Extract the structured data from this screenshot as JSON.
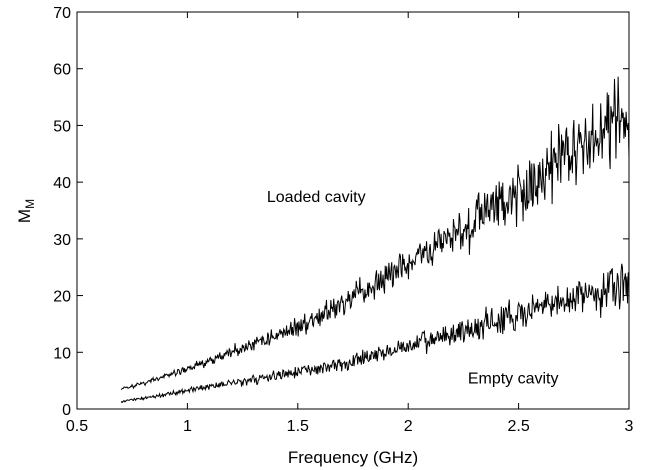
{
  "chart_data": {
    "type": "line",
    "title": "",
    "xlabel": "Frequency (GHz)",
    "ylabel_main": "M",
    "ylabel_sub": "M",
    "xlim": [
      0.5,
      3
    ],
    "ylim": [
      0,
      70
    ],
    "x_ticks": [
      0.5,
      1,
      1.5,
      2,
      2.5,
      3
    ],
    "x_tick_labels": [
      "0.5",
      "1",
      "1.5",
      "2",
      "2.5",
      "3"
    ],
    "y_ticks": [
      0,
      10,
      20,
      30,
      40,
      50,
      60,
      70
    ],
    "y_tick_labels": [
      "0",
      "10",
      "20",
      "30",
      "40",
      "50",
      "60",
      "70"
    ],
    "grid": false,
    "legend": "none",
    "line_color": "#000000",
    "annotations": [
      {
        "text": "Loaded cavity",
        "x": 1.36,
        "y": 36.5
      },
      {
        "text": "Empty cavity",
        "x": 2.27,
        "y": 4.5
      }
    ],
    "series": [
      {
        "x": [
          0.7,
          0.8,
          0.9,
          1.0,
          1.1,
          1.2,
          1.3,
          1.4,
          1.5,
          1.6,
          1.7,
          1.8,
          1.9,
          2.0,
          2.1,
          2.2,
          2.3,
          2.4,
          2.5,
          2.6,
          2.7,
          2.8,
          2.9,
          2.95,
          3.0
        ],
        "values": [
          3.5,
          4.5,
          5.8,
          7.0,
          8.5,
          10.0,
          11.5,
          13.0,
          14.5,
          16.5,
          18.5,
          20.5,
          23.0,
          25.5,
          28.0,
          30.5,
          33.5,
          36.0,
          38.5,
          41.0,
          43.5,
          46.5,
          49.0,
          51.0,
          52.0
        ],
        "noise_amplitude": [
          0.3,
          0.4,
          0.5,
          0.7,
          0.8,
          1.0,
          1.2,
          1.4,
          1.6,
          1.8,
          2.0,
          2.3,
          2.6,
          3.0,
          3.3,
          3.6,
          4.0,
          4.4,
          4.8,
          5.2,
          5.6,
          6.0,
          6.5,
          6.8,
          7.0
        ]
      },
      {
        "x": [
          0.7,
          0.8,
          0.9,
          1.0,
          1.1,
          1.2,
          1.3,
          1.4,
          1.5,
          1.6,
          1.7,
          1.8,
          1.9,
          2.0,
          2.1,
          2.2,
          2.3,
          2.4,
          2.5,
          2.6,
          2.7,
          2.8,
          2.9,
          2.95,
          3.0
        ],
        "values": [
          1.3,
          1.9,
          2.6,
          3.3,
          4.0,
          4.6,
          5.2,
          5.8,
          6.5,
          7.2,
          8.0,
          9.0,
          10.0,
          11.0,
          12.0,
          13.2,
          14.3,
          15.5,
          16.5,
          17.7,
          19.0,
          20.2,
          21.2,
          21.8,
          22.5
        ],
        "noise_amplitude": [
          0.2,
          0.25,
          0.3,
          0.4,
          0.5,
          0.6,
          0.7,
          0.8,
          0.9,
          1.0,
          1.2,
          1.3,
          1.5,
          1.7,
          1.9,
          2.1,
          2.3,
          2.5,
          2.7,
          2.9,
          3.1,
          3.3,
          3.5,
          3.6,
          3.7
        ]
      }
    ]
  }
}
